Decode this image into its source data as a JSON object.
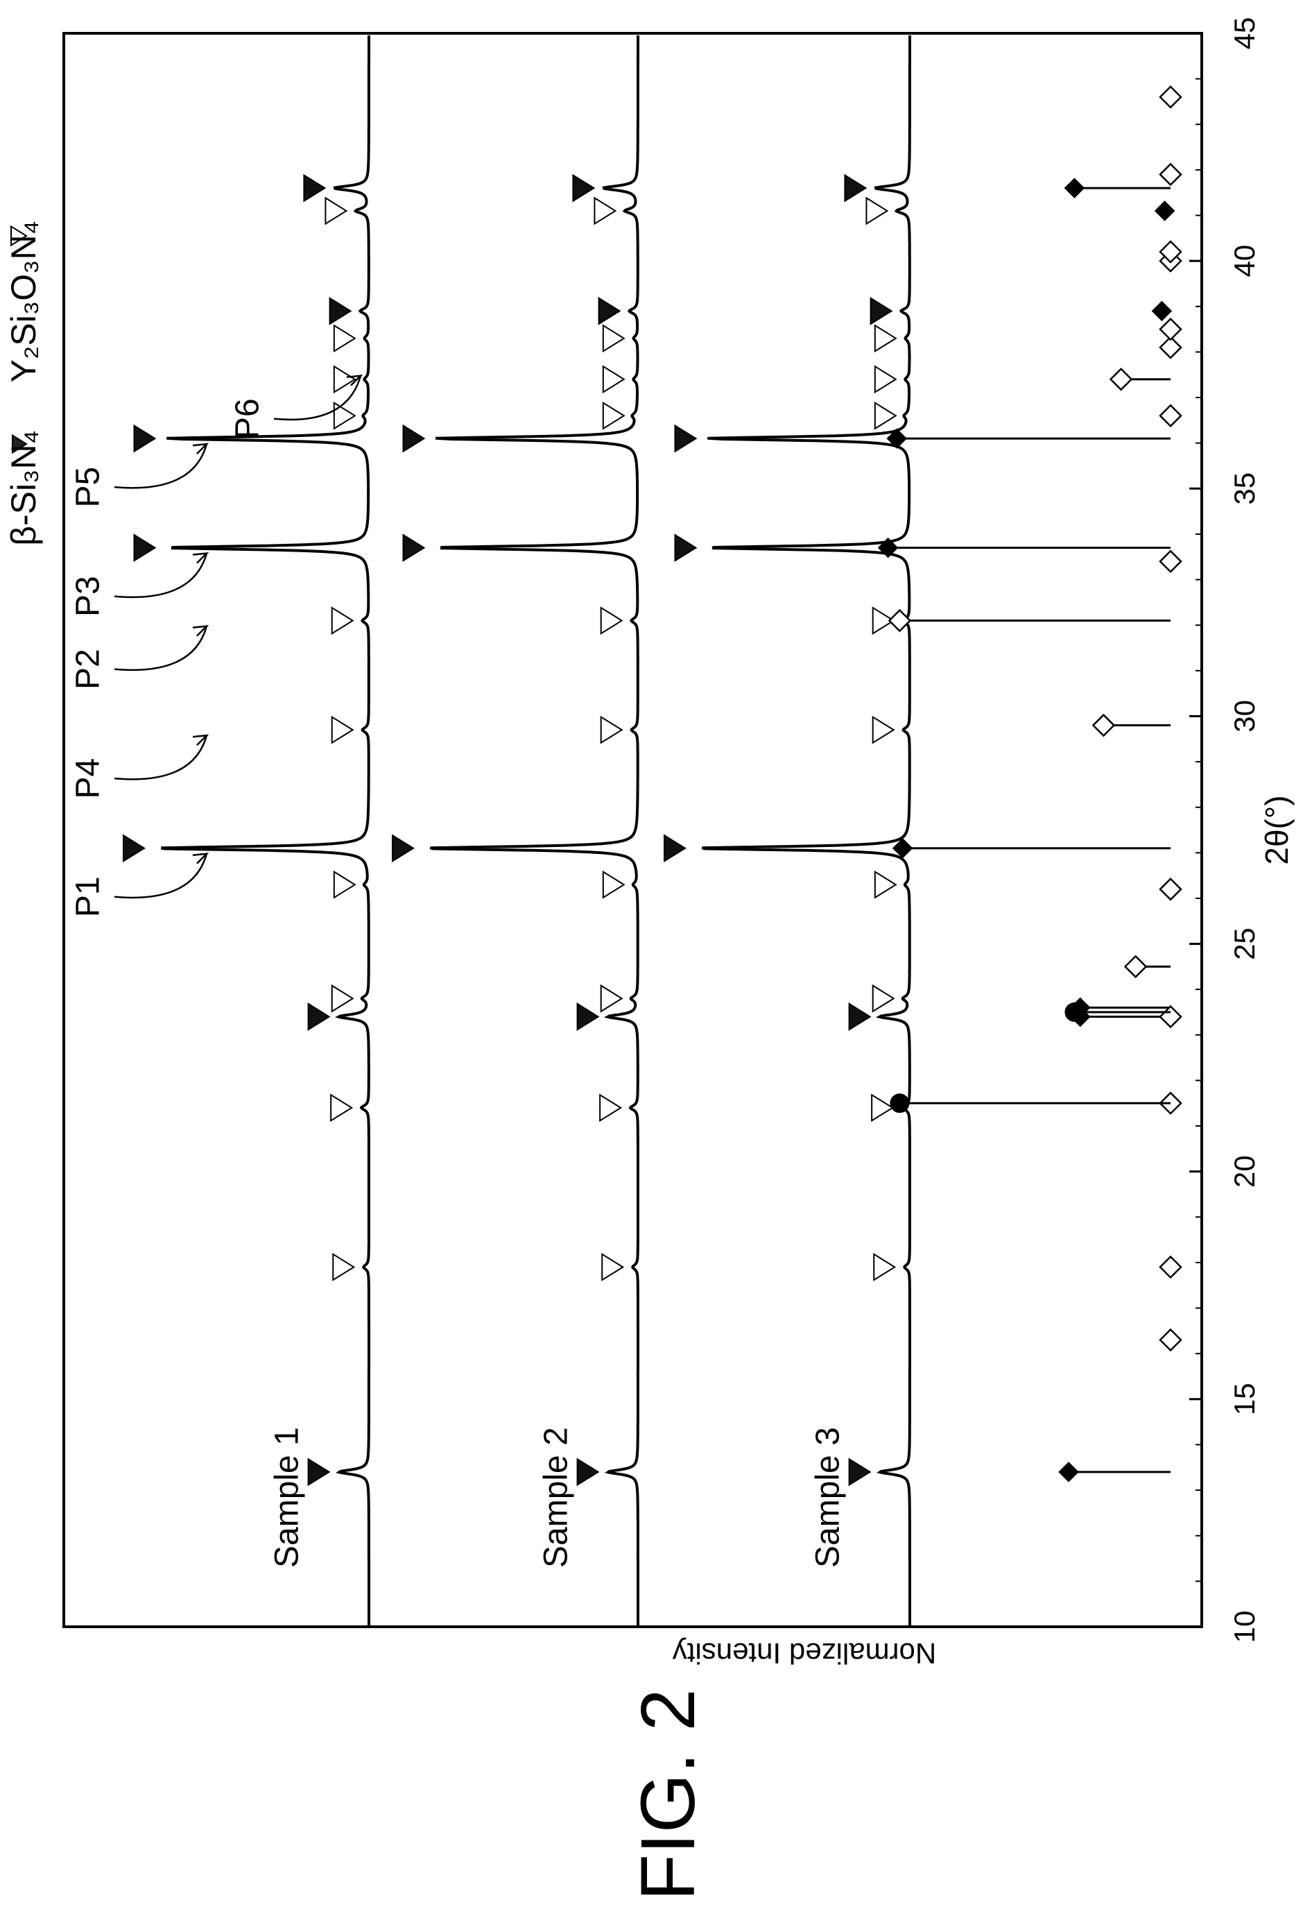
{
  "figure_label": "FIG. 2",
  "chart_data": {
    "type": "line",
    "orientation": "rotated 90° counter-clockwise",
    "title": "",
    "xlabel": "2θ(°)",
    "ylabel": "Normalized Intensity",
    "xlim": [
      10,
      45
    ],
    "xticks": [
      "10",
      "15",
      "20",
      "25",
      "30",
      "35",
      "40",
      "45"
    ],
    "legend": {
      "placement": "top",
      "entries": [
        {
          "marker": "filled-triangle",
          "label": "β-Si₃N₄"
        },
        {
          "marker": "open-triangle",
          "label": "Y₂Si₃O₃N₄"
        }
      ]
    },
    "series": [
      {
        "name": "Sample 1"
      },
      {
        "name": "Sample 2"
      },
      {
        "name": "Sample 3"
      }
    ],
    "peaks": [
      {
        "two_theta": 13.4,
        "rel_height": 0.14,
        "phase": "β-Si₃N₄"
      },
      {
        "two_theta": 17.9,
        "rel_height": 0.025,
        "phase": "Y₂Si₃O₃N₄"
      },
      {
        "two_theta": 21.4,
        "rel_height": 0.035,
        "phase": "Y₂Si₃O₃N₄"
      },
      {
        "two_theta": 23.4,
        "rel_height": 0.14,
        "phase": "β-Si₃N₄"
      },
      {
        "two_theta": 23.8,
        "rel_height": 0.03,
        "phase": "Y₂Si₃O₃N₄"
      },
      {
        "two_theta": 26.3,
        "rel_height": 0.02,
        "phase": "Y₂Si₃O₃N₄"
      },
      {
        "two_theta": 27.1,
        "rel_height": 1.0,
        "phase": "β-Si₃N₄"
      },
      {
        "two_theta": 29.7,
        "rel_height": 0.03,
        "phase": "Y₂Si₃O₃N₄"
      },
      {
        "two_theta": 32.1,
        "rel_height": 0.03,
        "phase": "Y₂Si₃O₃N₄"
      },
      {
        "two_theta": 33.7,
        "rel_height": 0.95,
        "phase": "β-Si₃N₄"
      },
      {
        "two_theta": 36.1,
        "rel_height": 0.95,
        "phase": "β-Si₃N₄"
      },
      {
        "two_theta": 36.6,
        "rel_height": 0.02,
        "phase": "Y₂Si₃O₃N₄"
      },
      {
        "two_theta": 37.4,
        "rel_height": 0.02,
        "phase": "Y₂Si₃O₃N₄"
      },
      {
        "two_theta": 38.3,
        "rel_height": 0.02,
        "phase": "Y₂Si₃O₃N₄"
      },
      {
        "two_theta": 38.9,
        "rel_height": 0.04,
        "phase": "β-Si₃N₄"
      },
      {
        "two_theta": 41.1,
        "rel_height": 0.06,
        "phase": "Y₂Si₃O₃N₄"
      },
      {
        "two_theta": 41.6,
        "rel_height": 0.16,
        "phase": "β-Si₃N₄"
      }
    ],
    "peak_labels": [
      {
        "label": "P1",
        "two_theta": 27.1
      },
      {
        "label": "P4",
        "two_theta": 29.7
      },
      {
        "label": "P2",
        "two_theta": 32.1
      },
      {
        "label": "P3",
        "two_theta": 33.7
      },
      {
        "label": "P5",
        "two_theta": 36.1
      },
      {
        "label": "P6",
        "two_theta": 37.6
      }
    ],
    "reference_pattern": {
      "beta_Si3N4": [
        {
          "two_theta": 13.4,
          "rel": 0.35
        },
        {
          "two_theta": 23.4,
          "rel": 0.31
        },
        {
          "two_theta": 23.6,
          "rel": 0.31
        },
        {
          "two_theta": 27.1,
          "rel": 0.92
        },
        {
          "two_theta": 33.7,
          "rel": 0.97
        },
        {
          "two_theta": 36.1,
          "rel": 0.94
        },
        {
          "two_theta": 38.9,
          "rel": 0.03
        },
        {
          "two_theta": 41.1,
          "rel": 0.02
        },
        {
          "two_theta": 41.6,
          "rel": 0.33
        }
      ],
      "Y2Si3O3N4": [
        {
          "two_theta": 16.3,
          "rel": 0.0
        },
        {
          "two_theta": 17.9,
          "rel": 0.0
        },
        {
          "two_theta": 21.5,
          "rel": 0.0
        },
        {
          "two_theta": 23.4,
          "rel": 0.0
        },
        {
          "two_theta": 24.5,
          "rel": 0.12
        },
        {
          "two_theta": 26.2,
          "rel": 0.0
        },
        {
          "two_theta": 29.8,
          "rel": 0.23
        },
        {
          "two_theta": 32.1,
          "rel": 0.93
        },
        {
          "two_theta": 33.4,
          "rel": 0.0
        },
        {
          "two_theta": 36.6,
          "rel": 0.0
        },
        {
          "two_theta": 37.4,
          "rel": 0.17
        },
        {
          "two_theta": 38.1,
          "rel": 0.0
        },
        {
          "two_theta": 38.5,
          "rel": 0.0
        },
        {
          "two_theta": 40.0,
          "rel": 0.0
        },
        {
          "two_theta": 40.2,
          "rel": 0.0
        },
        {
          "two_theta": 41.9,
          "rel": 0.0
        },
        {
          "two_theta": 43.6,
          "rel": 0.0
        }
      ],
      "filled_circle": [
        {
          "two_theta": 21.5,
          "rel": 0.93
        },
        {
          "two_theta": 23.5,
          "rel": 0.33
        }
      ]
    },
    "grid": false
  }
}
